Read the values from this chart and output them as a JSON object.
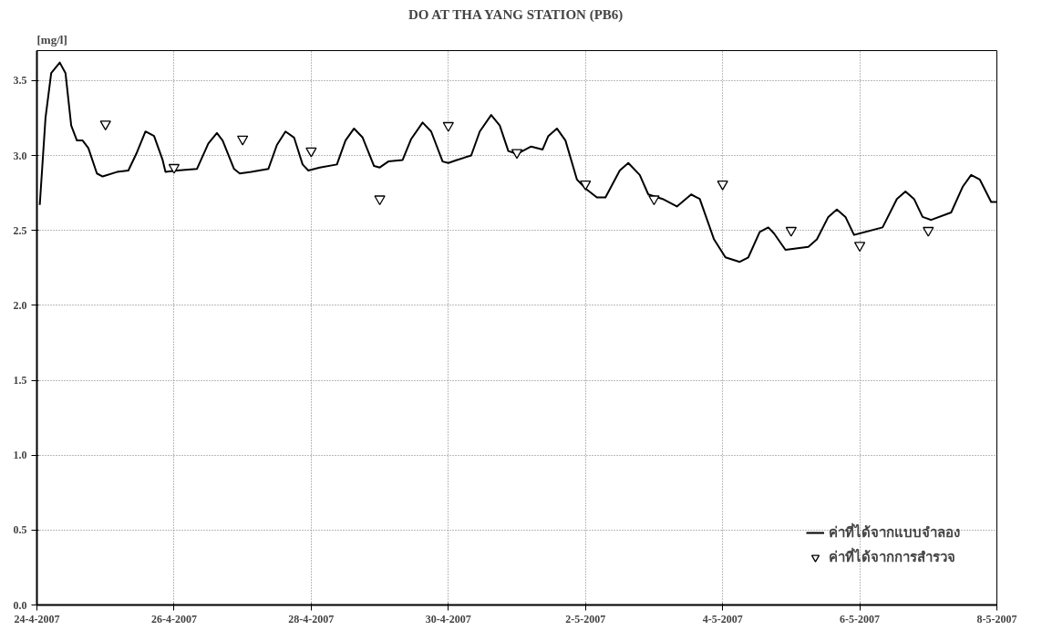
{
  "chart_data": {
    "type": "line",
    "title": "DO AT THA YANG STATION (PB6)",
    "ylabel": "[mg/l]",
    "xlim": [
      "2007-04-24",
      "2007-05-08"
    ],
    "xticks": [
      {
        "value": "2007-04-24",
        "label": "24-4-2007"
      },
      {
        "value": "2007-04-26",
        "label": "26-4-2007"
      },
      {
        "value": "2007-04-28",
        "label": "28-4-2007"
      },
      {
        "value": "2007-04-30",
        "label": "30-4-2007"
      },
      {
        "value": "2007-05-02",
        "label": "2-5-2007"
      },
      {
        "value": "2007-05-04",
        "label": "4-5-2007"
      },
      {
        "value": "2007-05-06",
        "label": "6-5-2007"
      },
      {
        "value": "2007-05-08",
        "label": "8-5-2007"
      }
    ],
    "ylim": [
      0.0,
      3.7
    ],
    "yticks": [
      {
        "value": 0,
        "label": "0.0"
      },
      {
        "value": 0.5,
        "label": "0.5"
      },
      {
        "value": 1,
        "label": "1.0"
      },
      {
        "value": 1.5,
        "label": "1.5"
      },
      {
        "value": 2,
        "label": "2.0"
      },
      {
        "value": 2.5,
        "label": "2.5"
      },
      {
        "value": 3,
        "label": "3.0"
      },
      {
        "value": 3.5,
        "label": "3.5"
      }
    ],
    "grid": true,
    "legend": "bottom right",
    "series": [
      {
        "name": "ค่าที่ได้จากแบบจำลอง",
        "color": "#000000",
        "marker": "none",
        "line_style": "solid",
        "x": [
          "2007-04-24T01:00",
          "2007-04-24T03:00",
          "2007-04-24T05:00",
          "2007-04-24T08:00",
          "2007-04-24T10:00",
          "2007-04-24T12:00",
          "2007-04-24T14:00",
          "2007-04-24T16:00",
          "2007-04-24T18:00",
          "2007-04-24T21:00",
          "2007-04-24T23:00",
          "2007-04-25T04:00",
          "2007-04-25T08:00",
          "2007-04-25T11:00",
          "2007-04-25T14:00",
          "2007-04-25T17:00",
          "2007-04-25T20:00",
          "2007-04-25T21:00",
          "2007-04-26T01:00",
          "2007-04-26T08:00",
          "2007-04-26T12:00",
          "2007-04-26T15:00",
          "2007-04-26T17:00",
          "2007-04-26T21:00",
          "2007-04-26T23:00",
          "2007-04-27T03:00",
          "2007-04-27T09:00",
          "2007-04-27T12:00",
          "2007-04-27T15:00",
          "2007-04-27T18:00",
          "2007-04-27T21:00",
          "2007-04-27T23:00",
          "2007-04-28T03:00",
          "2007-04-28T09:00",
          "2007-04-28T12:00",
          "2007-04-28T15:00",
          "2007-04-28T18:00",
          "2007-04-28T22:00",
          "2007-04-29T00:00",
          "2007-04-29T03:00",
          "2007-04-29T08:00",
          "2007-04-29T11:00",
          "2007-04-29T15:00",
          "2007-04-29T18:00",
          "2007-04-29T22:00",
          "2007-04-30T00:00",
          "2007-04-30T03:00",
          "2007-04-30T08:00",
          "2007-04-30T11:00",
          "2007-04-30T15:00",
          "2007-04-30T18:00",
          "2007-04-30T21:00",
          "2007-05-01T00:00",
          "2007-05-01T05:00",
          "2007-05-01T09:00",
          "2007-05-01T11:00",
          "2007-05-01T14:00",
          "2007-05-01T17:00",
          "2007-05-01T21:00",
          "2007-05-02T00:00",
          "2007-05-02T04:00",
          "2007-05-02T07:00",
          "2007-05-02T12:00",
          "2007-05-02T15:00",
          "2007-05-02T19:00",
          "2007-05-02T22:00",
          "2007-05-03T03:00",
          "2007-05-03T08:00",
          "2007-05-03T13:00",
          "2007-05-03T16:00",
          "2007-05-03T21:00",
          "2007-05-04T01:00",
          "2007-05-04T06:00",
          "2007-05-04T09:00",
          "2007-05-04T13:00",
          "2007-05-04T16:00",
          "2007-05-04T18:00",
          "2007-05-04T22:00",
          "2007-05-05T06:00",
          "2007-05-05T09:00",
          "2007-05-05T13:00",
          "2007-05-05T16:00",
          "2007-05-05T19:00",
          "2007-05-05T22:00",
          "2007-05-06T08:00",
          "2007-05-06T13:00",
          "2007-05-06T16:00",
          "2007-05-06T19:00",
          "2007-05-06T22:00",
          "2007-05-07T01:00",
          "2007-05-07T08:00",
          "2007-05-07T12:00",
          "2007-05-07T15:00",
          "2007-05-07T18:00",
          "2007-05-07T22:00",
          "2007-05-08T00:00"
        ],
        "values": [
          2.67,
          3.25,
          3.55,
          3.62,
          3.55,
          3.2,
          3.1,
          3.1,
          3.05,
          2.88,
          2.86,
          2.89,
          2.9,
          3.02,
          3.16,
          3.13,
          2.97,
          2.89,
          2.9,
          2.91,
          3.08,
          3.15,
          3.1,
          2.91,
          2.88,
          2.89,
          2.91,
          3.07,
          3.16,
          3.12,
          2.94,
          2.9,
          2.92,
          2.94,
          3.1,
          3.18,
          3.12,
          2.93,
          2.92,
          2.96,
          2.97,
          3.11,
          3.22,
          3.16,
          2.96,
          2.95,
          2.97,
          3.0,
          3.16,
          3.27,
          3.2,
          3.03,
          3.01,
          3.06,
          3.04,
          3.13,
          3.18,
          3.1,
          2.84,
          2.78,
          2.72,
          2.72,
          2.9,
          2.95,
          2.87,
          2.74,
          2.71,
          2.66,
          2.74,
          2.71,
          2.44,
          2.32,
          2.29,
          2.32,
          2.49,
          2.52,
          2.48,
          2.37,
          2.39,
          2.44,
          2.59,
          2.64,
          2.59,
          2.47,
          2.52,
          2.71,
          2.76,
          2.71,
          2.59,
          2.57,
          2.62,
          2.79,
          2.87,
          2.84,
          2.69,
          2.69
        ]
      },
      {
        "name": "ค่าที่ได้จากการสำรวจ",
        "type": "scatter",
        "color": "#000000",
        "marker": "triangle",
        "x": [
          "2007-04-25",
          "2007-04-26",
          "2007-04-27",
          "2007-04-28",
          "2007-04-29",
          "2007-04-30",
          "2007-05-01",
          "2007-05-02",
          "2007-05-03",
          "2007-05-04",
          "2007-05-05",
          "2007-05-06",
          "2007-05-07"
        ],
        "values": [
          3.21,
          2.92,
          3.11,
          3.03,
          2.71,
          3.2,
          3.02,
          2.81,
          2.71,
          2.81,
          2.5,
          2.4,
          2.5
        ]
      }
    ]
  }
}
